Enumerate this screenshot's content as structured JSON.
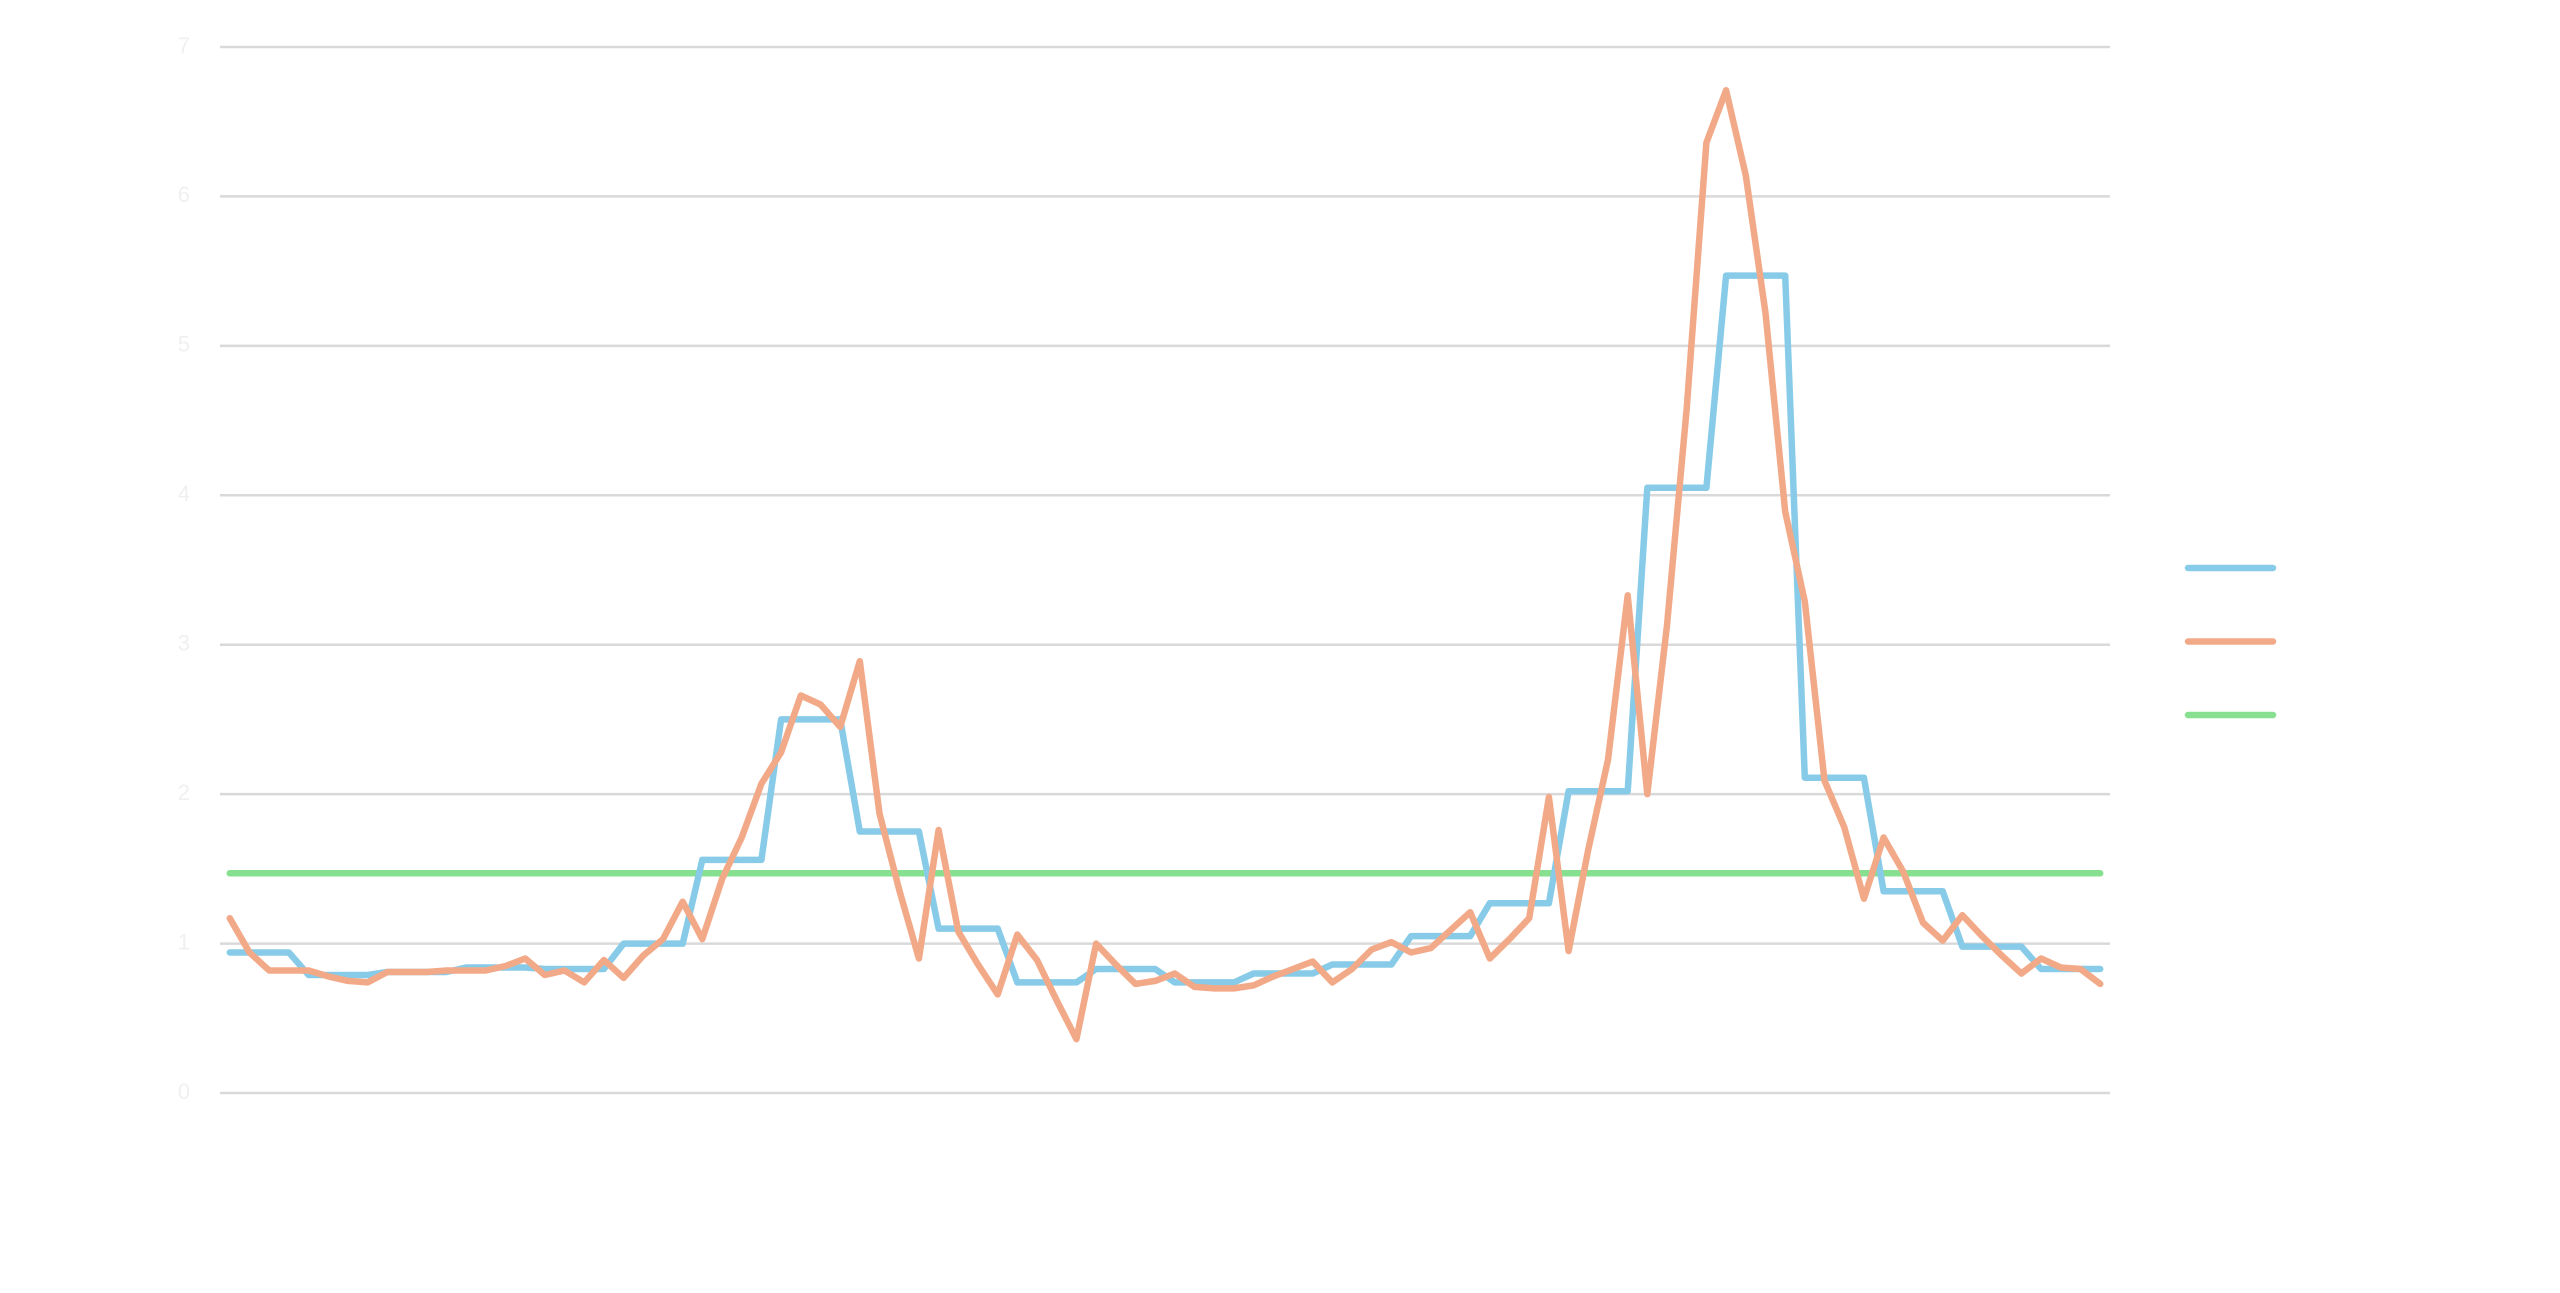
{
  "chart_data": {
    "type": "line",
    "categories": [
      null,
      null,
      null,
      null,
      null,
      null,
      null,
      null,
      null,
      null,
      null,
      null,
      null,
      null,
      null,
      null,
      null,
      null,
      null,
      null,
      null,
      null,
      null,
      null,
      null,
      null,
      null,
      null,
      null,
      null,
      null,
      null,
      null,
      null,
      null,
      null,
      null,
      null,
      null,
      null,
      null,
      null,
      null,
      null,
      null,
      null,
      null,
      null,
      null,
      null,
      null,
      null,
      null,
      null,
      null,
      null,
      null,
      null,
      null,
      null,
      null,
      null,
      null,
      null,
      null,
      null,
      null,
      null,
      null,
      null,
      null,
      null,
      null,
      null,
      null,
      null,
      null,
      null,
      null,
      null,
      null,
      null,
      null,
      null,
      null,
      null,
      null,
      null,
      null,
      null,
      null,
      null,
      null,
      null,
      null,
      null
    ],
    "series": [
      {
        "color": "#87cbe8",
        "values": [
          0.94,
          0.94,
          0.94,
          0.94,
          0.79,
          0.79,
          0.79,
          0.79,
          0.81,
          0.81,
          0.81,
          0.81,
          0.84,
          0.84,
          0.84,
          0.84,
          0.83,
          0.83,
          0.83,
          0.83,
          1.0,
          1.0,
          1.0,
          1.0,
          1.56,
          1.56,
          1.56,
          1.56,
          2.5,
          2.5,
          2.5,
          2.5,
          1.75,
          1.75,
          1.75,
          1.75,
          1.1,
          1.1,
          1.1,
          1.1,
          0.74,
          0.74,
          0.74,
          0.74,
          0.83,
          0.83,
          0.83,
          0.83,
          0.74,
          0.74,
          0.74,
          0.74,
          0.8,
          0.8,
          0.8,
          0.8,
          0.86,
          0.86,
          0.86,
          0.86,
          1.05,
          1.05,
          1.05,
          1.05,
          1.27,
          1.27,
          1.27,
          1.27,
          2.02,
          2.02,
          2.02,
          2.02,
          4.05,
          4.05,
          4.05,
          4.05,
          5.47,
          5.47,
          5.47,
          5.47,
          2.11,
          2.11,
          2.11,
          2.11,
          1.35,
          1.35,
          1.35,
          1.35,
          0.98,
          0.98,
          0.98,
          0.98,
          0.83,
          0.83,
          0.83,
          0.83
        ]
      },
      {
        "color": "#f2a988",
        "values": [
          1.17,
          0.94,
          0.82,
          0.82,
          0.82,
          0.78,
          0.75,
          0.74,
          0.81,
          0.81,
          0.81,
          0.82,
          0.82,
          0.82,
          0.85,
          0.9,
          0.79,
          0.82,
          0.74,
          0.89,
          0.77,
          0.92,
          1.03,
          1.28,
          1.03,
          1.43,
          1.71,
          2.07,
          2.28,
          2.66,
          2.6,
          2.45,
          2.89,
          1.87,
          1.36,
          0.9,
          1.76,
          1.08,
          0.86,
          0.66,
          1.06,
          0.89,
          0.62,
          0.36,
          1.0,
          0.86,
          0.73,
          0.75,
          0.8,
          0.71,
          0.7,
          0.7,
          0.72,
          0.78,
          0.83,
          0.88,
          0.74,
          0.83,
          0.96,
          1.01,
          0.94,
          0.97,
          1.09,
          1.21,
          0.9,
          1.03,
          1.17,
          1.98,
          0.95,
          1.63,
          2.23,
          3.33,
          2.0,
          3.13,
          4.58,
          6.36,
          6.71,
          6.14,
          5.22,
          3.89,
          3.29,
          2.09,
          1.78,
          1.3,
          1.71,
          1.48,
          1.14,
          1.02,
          1.19,
          1.05,
          0.92,
          0.8,
          0.9,
          0.84,
          0.83,
          0.73
        ]
      },
      {
        "color": "#86e08f",
        "values": [
          1.47,
          1.47,
          1.47,
          1.47,
          1.47,
          1.47,
          1.47,
          1.47,
          1.47,
          1.47,
          1.47,
          1.47,
          1.47,
          1.47,
          1.47,
          1.47,
          1.47,
          1.47,
          1.47,
          1.47,
          1.47,
          1.47,
          1.47,
          1.47,
          1.47,
          1.47,
          1.47,
          1.47,
          1.47,
          1.47,
          1.47,
          1.47,
          1.47,
          1.47,
          1.47,
          1.47,
          1.47,
          1.47,
          1.47,
          1.47,
          1.47,
          1.47,
          1.47,
          1.47,
          1.47,
          1.47,
          1.47,
          1.47,
          1.47,
          1.47,
          1.47,
          1.47,
          1.47,
          1.47,
          1.47,
          1.47,
          1.47,
          1.47,
          1.47,
          1.47,
          1.47,
          1.47,
          1.47,
          1.47,
          1.47,
          1.47,
          1.47,
          1.47,
          1.47,
          1.47,
          1.47,
          1.47,
          1.47,
          1.47,
          1.47,
          1.47,
          1.47,
          1.47,
          1.47,
          1.47,
          1.47,
          1.47,
          1.47,
          1.47,
          1.47,
          1.47,
          1.47,
          1.47,
          1.47,
          1.47,
          1.47,
          1.47,
          1.47,
          1.47,
          1.47,
          1.47
        ]
      }
    ],
    "ylim": [
      0,
      7
    ],
    "yticks": [
      0,
      1,
      2,
      3,
      4,
      5,
      6,
      7
    ],
    "grid": true,
    "legend": "right"
  }
}
